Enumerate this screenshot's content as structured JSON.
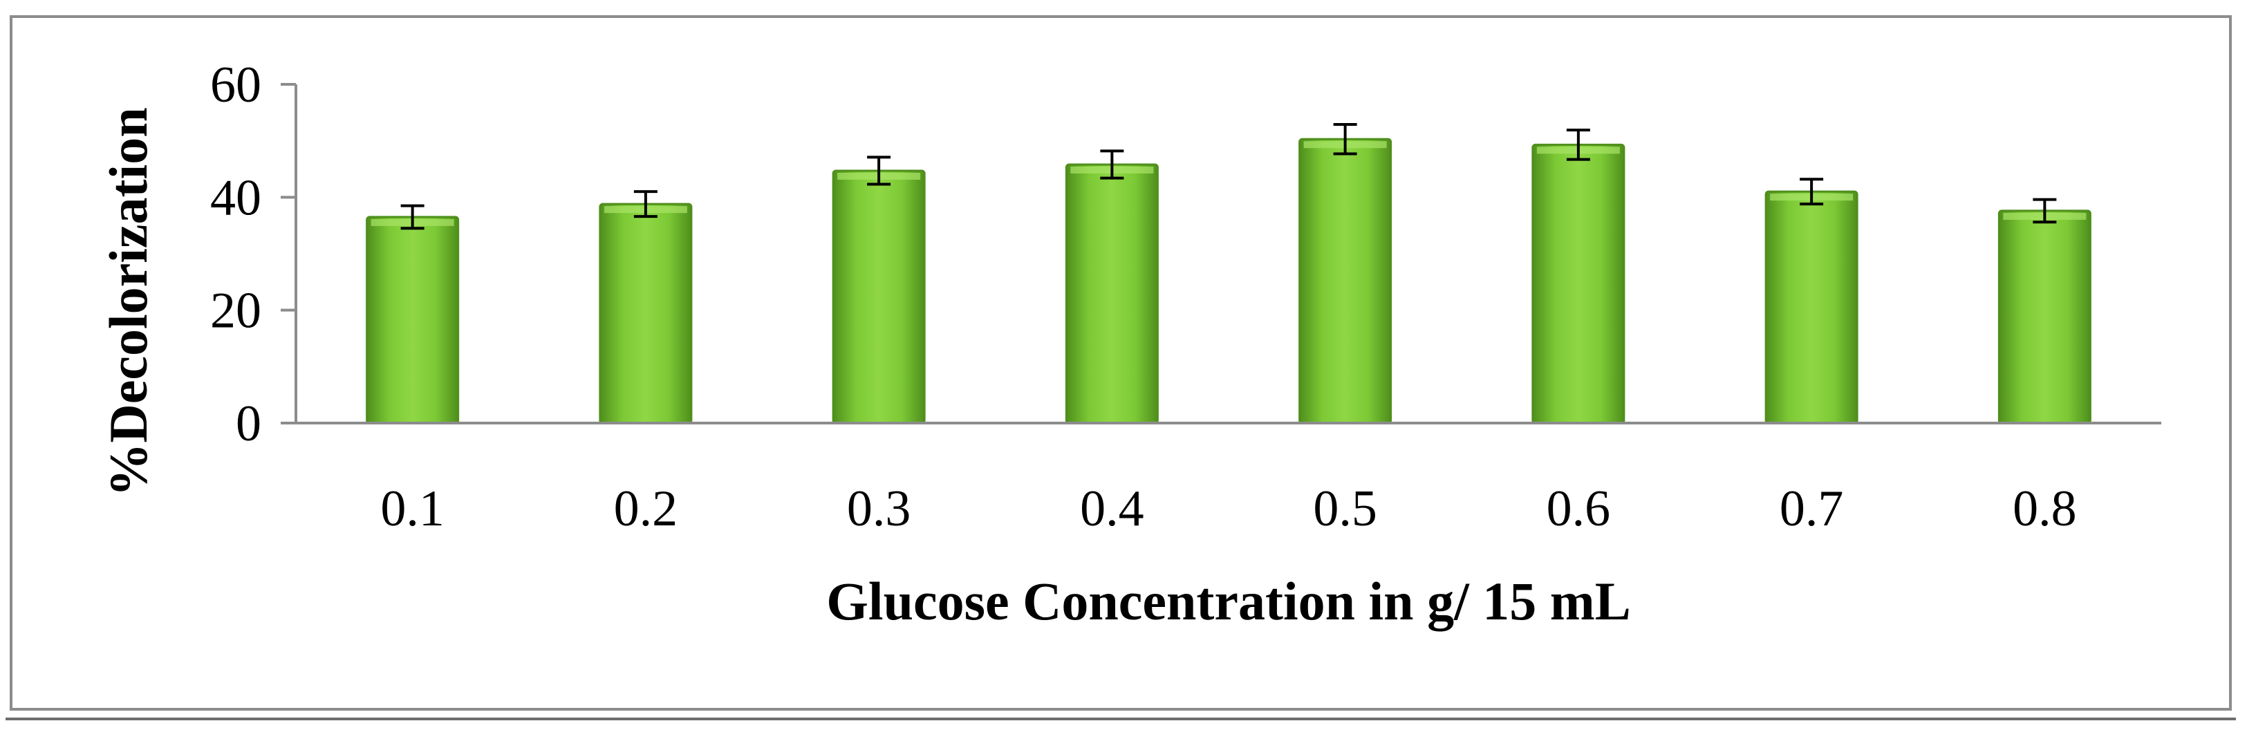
{
  "chart_data": {
    "type": "bar",
    "title": "",
    "xlabel": "Glucose Concentration in g/ 15 mL",
    "ylabel": "%Decolorization",
    "categories": [
      "0.1",
      "0.2",
      "0.3",
      "0.4",
      "0.5",
      "0.6",
      "0.7",
      "0.8"
    ],
    "values": [
      36.5,
      38.8,
      44.7,
      45.8,
      50.3,
      49.3,
      41.0,
      37.6
    ],
    "errors": [
      2.0,
      2.2,
      2.4,
      2.4,
      2.6,
      2.6,
      2.2,
      2.0
    ],
    "ylim": [
      0,
      60
    ],
    "yticks": [
      "0",
      "20",
      "40",
      "60"
    ],
    "grid": false,
    "legend": "none",
    "bar_color": "#6fbf2a",
    "bar_edge_color": "#4f8f1c",
    "axis_color": "#8c8c8c"
  }
}
